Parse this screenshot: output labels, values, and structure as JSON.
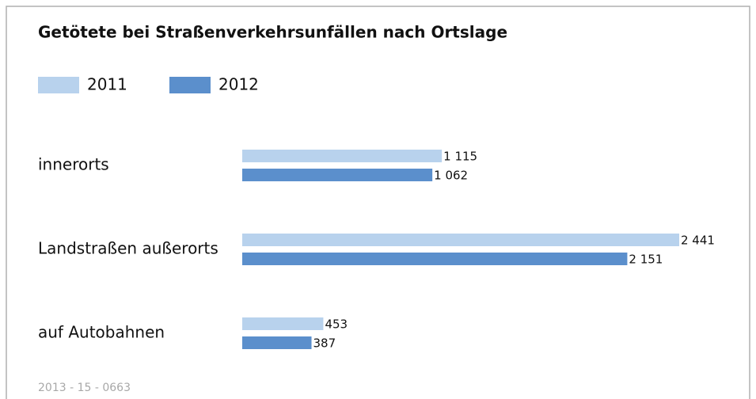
{
  "chart_data": {
    "type": "bar",
    "orientation": "horizontal",
    "title": "Getötete bei Straßenverkehrsunfällen nach Ortslage",
    "categories": [
      "innerorts",
      "Landstraßen außerorts",
      "auf Autobahnen"
    ],
    "series": [
      {
        "name": "2011",
        "color": "#b8d2ed",
        "values": [
          1115,
          2441,
          453
        ],
        "value_labels": [
          "1 115",
          "2 441",
          "453"
        ]
      },
      {
        "name": "2012",
        "color": "#5b8fcc",
        "values": [
          1062,
          2151,
          387
        ],
        "value_labels": [
          "1 062",
          "2 151",
          "387"
        ]
      }
    ],
    "footnote": "2013 - 15 - 0663"
  }
}
